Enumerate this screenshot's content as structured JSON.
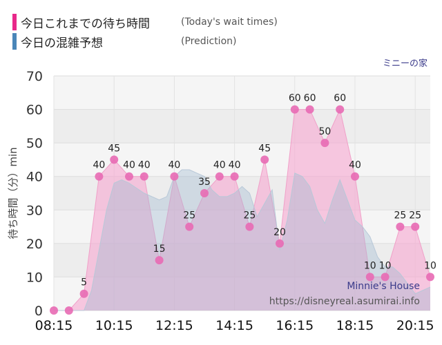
{
  "legend": {
    "today_label": "今日これまでの待ち時間",
    "today_sub": "(Today's wait times)",
    "today_color": "#e8288a",
    "pred_label": "今日の混雑予想",
    "pred_sub": "(Prediction)",
    "pred_color": "#4a86b8"
  },
  "attraction_name": "ミニーの家",
  "credit": {
    "line1": "Minnie's House",
    "line2": "https://disneyreal.asumirai.info"
  },
  "chart_data": {
    "type": "area",
    "ylabel": "待ち時間（分）min",
    "ylim": [
      0,
      70
    ],
    "yticks": [
      0,
      10,
      20,
      30,
      40,
      50,
      60,
      70
    ],
    "xticks": [
      "08:15",
      "10:15",
      "12:15",
      "14:15",
      "16:15",
      "18:15",
      "20:15"
    ],
    "xlim": [
      "08:15",
      "20:45"
    ],
    "series": [
      {
        "key": "today",
        "x": [
          "08:15",
          "08:45",
          "09:15",
          "09:45",
          "10:15",
          "10:45",
          "11:15",
          "11:45",
          "12:15",
          "12:45",
          "13:15",
          "13:45",
          "14:15",
          "14:45",
          "15:15",
          "15:45",
          "16:15",
          "16:45",
          "17:15",
          "17:45",
          "18:15",
          "18:45",
          "19:15",
          "19:45",
          "20:15",
          "20:45"
        ],
        "values": [
          0,
          0,
          5,
          40,
          45,
          40,
          40,
          15,
          40,
          25,
          35,
          40,
          40,
          25,
          45,
          20,
          60,
          60,
          50,
          60,
          40,
          10,
          10,
          25,
          25,
          10
        ],
        "labels": [
          "",
          "",
          "5",
          "40",
          "45",
          "40",
          "40",
          "15",
          "40",
          "25",
          "35",
          "40",
          "40",
          "25",
          "45",
          "20",
          "60",
          "60",
          "50",
          "60",
          "40",
          "10",
          "10",
          "25",
          "25",
          "10"
        ]
      },
      {
        "key": "prediction",
        "x": [
          "08:15",
          "08:45",
          "09:15",
          "09:30",
          "09:45",
          "10:00",
          "10:15",
          "10:30",
          "10:45",
          "11:15",
          "11:45",
          "12:00",
          "12:15",
          "12:30",
          "12:45",
          "13:00",
          "13:15",
          "13:30",
          "13:45",
          "14:00",
          "14:15",
          "14:30",
          "14:45",
          "15:00",
          "15:15",
          "15:30",
          "15:45",
          "16:00",
          "16:15",
          "16:30",
          "16:45",
          "17:00",
          "17:15",
          "17:30",
          "17:45",
          "18:00",
          "18:15",
          "18:30",
          "18:45",
          "19:00",
          "19:15",
          "19:30",
          "19:45",
          "20:15",
          "20:45"
        ],
        "values": [
          0,
          0,
          0,
          6,
          18,
          30,
          38,
          39,
          38,
          35,
          33,
          34,
          40,
          42,
          42,
          41,
          40,
          36,
          34,
          34,
          35,
          37,
          35,
          28,
          32,
          36,
          18,
          27,
          41,
          40,
          37,
          30,
          26,
          33,
          39,
          33,
          27,
          25,
          22,
          16,
          13,
          13,
          11,
          5,
          7
        ]
      }
    ]
  }
}
